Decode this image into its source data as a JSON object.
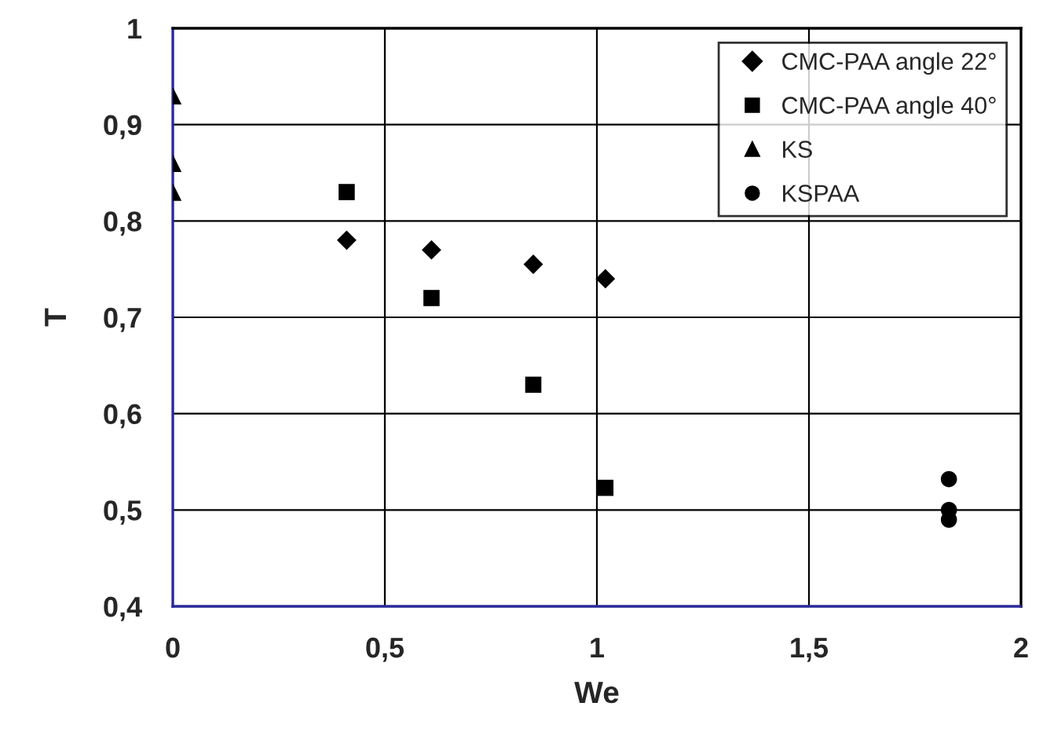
{
  "chart_data": {
    "type": "scatter",
    "xlabel": "We",
    "ylabel": "T",
    "xlim": [
      0,
      2
    ],
    "ylim": [
      0.4,
      1
    ],
    "xticks": [
      {
        "value": 0,
        "label": "0"
      },
      {
        "value": 0.5,
        "label": "0,5"
      },
      {
        "value": 1,
        "label": "1"
      },
      {
        "value": 1.5,
        "label": "1,5"
      },
      {
        "value": 2,
        "label": "2"
      }
    ],
    "yticks": [
      {
        "value": 0.4,
        "label": "0,4"
      },
      {
        "value": 0.5,
        "label": "0,5"
      },
      {
        "value": 0.6,
        "label": "0,6"
      },
      {
        "value": 0.7,
        "label": "0,7"
      },
      {
        "value": 0.8,
        "label": "0,8"
      },
      {
        "value": 0.9,
        "label": "0,9"
      },
      {
        "value": 1,
        "label": "1"
      }
    ],
    "grid": true,
    "legend": "top right",
    "series": [
      {
        "name": "CMC-PAA angle 22°",
        "color": "#000000",
        "marker": "diamond",
        "x": [
          0.41,
          0.61,
          0.85,
          1.02
        ],
        "values": [
          0.78,
          0.77,
          0.755,
          0.74
        ]
      },
      {
        "name": "CMC-PAA angle 40°",
        "color": "#000000",
        "marker": "square",
        "x": [
          0.41,
          0.61,
          0.85,
          1.02
        ],
        "values": [
          0.83,
          0.72,
          0.63,
          0.523
        ]
      },
      {
        "name": "KS",
        "color": "#000000",
        "marker": "triangle",
        "x": [
          0,
          0,
          0
        ],
        "values": [
          0.93,
          0.86,
          0.83
        ]
      },
      {
        "name": "KSPAA",
        "color": "#000000",
        "marker": "circle",
        "x": [
          1.83,
          1.83,
          1.83
        ],
        "values": [
          0.532,
          0.5,
          0.49
        ]
      }
    ]
  }
}
